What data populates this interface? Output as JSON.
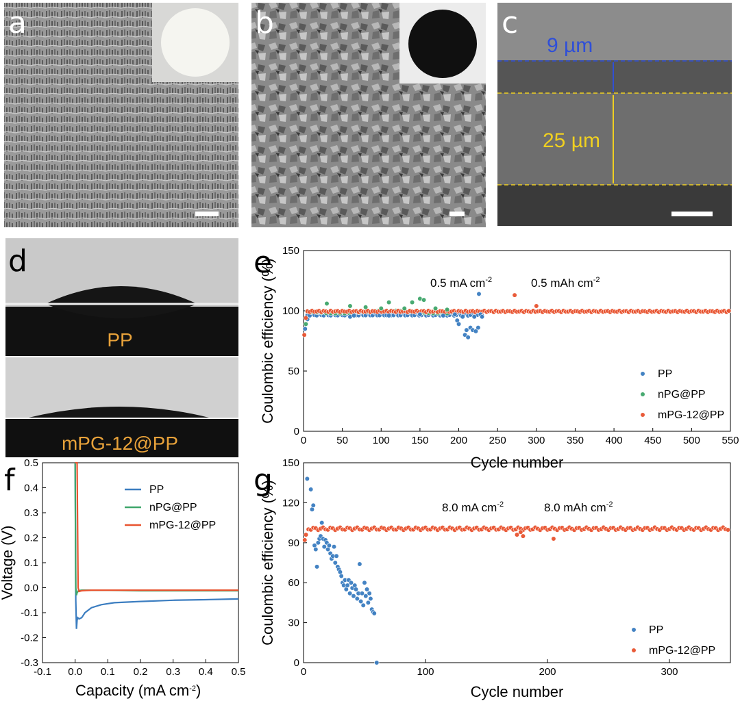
{
  "panels": {
    "a": {
      "label": "a"
    },
    "b": {
      "label": "b"
    },
    "c": {
      "label": "c",
      "top_thickness": "9 µm",
      "bottom_thickness": "25 µm"
    },
    "d": {
      "label": "d",
      "top_caption": "PP",
      "bottom_caption": "mPG-12@PP"
    }
  },
  "colors": {
    "PP": "#3b7dc0",
    "nPG@PP": "#3fa66a",
    "mPG-12@PP": "#e8532f",
    "caption": "#e8a23a",
    "scale_blue": "#2f4fd8",
    "scale_yellow": "#f0d020"
  },
  "chart_data": [
    {
      "panel": "e",
      "type": "scatter",
      "title": "",
      "xlabel": "Cycle number",
      "ylabel": "Coulombic efficiency (%)",
      "xlim": [
        0,
        550
      ],
      "ylim": [
        0,
        150
      ],
      "xticks": [
        "0",
        "50",
        "100",
        "150",
        "200",
        "250",
        "300",
        "350",
        "400",
        "450",
        "500",
        "550"
      ],
      "yticks": [
        "0",
        "50",
        "100",
        "150"
      ],
      "annotation_current": "0.5 mA cm",
      "annotation_capacity": "0.5 mAh cm",
      "annotation_sup": "-2",
      "legend_position": "right",
      "series": [
        {
          "name": "PP",
          "note": "dense band near 97-99 up to ~230 cycles",
          "points": [
            [
              2,
              85
            ],
            [
              5,
              93
            ],
            [
              60,
              95
            ],
            [
              65,
              96
            ],
            [
              110,
              96
            ],
            [
              150,
              97
            ],
            [
              180,
              96
            ],
            [
              195,
              97
            ],
            [
              198,
              92
            ],
            [
              200,
              89
            ],
            [
              205,
              95
            ],
            [
              208,
              80
            ],
            [
              210,
              84
            ],
            [
              212,
              78
            ],
            [
              215,
              86
            ],
            [
              218,
              84
            ],
            [
              220,
              95
            ],
            [
              222,
              83
            ],
            [
              225,
              86
            ],
            [
              226,
              114
            ],
            [
              228,
              97
            ],
            [
              230,
              95
            ]
          ]
        },
        {
          "name": "nPG@PP",
          "points": [
            [
              3,
              89
            ],
            [
              30,
              106
            ],
            [
              60,
              104
            ],
            [
              80,
              103
            ],
            [
              100,
              102
            ],
            [
              110,
              107
            ],
            [
              130,
              102
            ],
            [
              140,
              107
            ],
            [
              150,
              110
            ],
            [
              155,
              109
            ],
            [
              170,
              102
            ],
            [
              185,
              101
            ]
          ]
        },
        {
          "name": "mPG-12@PP",
          "note": "dense band near 99-100 over 0-550 cycles",
          "points": [
            [
              1,
              80
            ],
            [
              3,
              94
            ],
            [
              272,
              113
            ],
            [
              300,
              104
            ]
          ]
        }
      ]
    },
    {
      "panel": "f",
      "type": "line",
      "title": "",
      "xlabel": "Capacity (mA cm",
      "xlabel_sup": "-2",
      "xlabel_end": ")",
      "ylabel": "Voltage (V)",
      "xlim": [
        -0.1,
        0.5
      ],
      "ylim": [
        -0.3,
        0.5
      ],
      "xticks": [
        "-0.1",
        "0.0",
        "0.1",
        "0.2",
        "0.3",
        "0.4",
        "0.5"
      ],
      "yticks": [
        "-0.3",
        "-0.2",
        "-0.1",
        "0.0",
        "0.1",
        "0.2",
        "0.3",
        "0.4",
        "0.5"
      ],
      "legend_position": "top-right",
      "series": [
        {
          "name": "PP",
          "x": [
            0.0,
            0.002,
            0.004,
            0.006,
            0.008,
            0.012,
            0.02,
            0.03,
            0.05,
            0.08,
            0.12,
            0.2,
            0.3,
            0.4,
            0.5
          ],
          "y": [
            0.5,
            -0.05,
            -0.165,
            -0.13,
            -0.12,
            -0.125,
            -0.12,
            -0.1,
            -0.08,
            -0.068,
            -0.06,
            -0.055,
            -0.05,
            -0.048,
            -0.045
          ]
        },
        {
          "name": "nPG@PP",
          "x": [
            0.0,
            0.002,
            0.004,
            0.006,
            0.01,
            0.02,
            0.05,
            0.1,
            0.2,
            0.3,
            0.4,
            0.5
          ],
          "y": [
            0.5,
            0.0,
            -0.03,
            -0.02,
            -0.012,
            -0.01,
            -0.01,
            -0.01,
            -0.012,
            -0.012,
            -0.012,
            -0.012
          ]
        },
        {
          "name": "mPG-12@PP",
          "x": [
            0.0,
            0.006,
            0.009,
            0.012,
            0.02,
            0.05,
            0.1,
            0.2,
            0.3,
            0.4,
            0.5
          ],
          "y": [
            0.5,
            0.5,
            0.0,
            -0.015,
            -0.012,
            -0.01,
            -0.01,
            -0.01,
            -0.01,
            -0.01,
            -0.01
          ]
        }
      ]
    },
    {
      "panel": "g",
      "type": "scatter",
      "title": "",
      "xlabel": "Cycle number",
      "ylabel": "Coulombic efficiency (%)",
      "xlim": [
        0,
        350
      ],
      "ylim": [
        0,
        150
      ],
      "xticks": [
        "0",
        "100",
        "200",
        "300"
      ],
      "yticks": [
        "0",
        "30",
        "60",
        "90",
        "120",
        "150"
      ],
      "annotation_current": "8.0 mA cm",
      "annotation_capacity": "8.0 mAh cm",
      "annotation_sup": "-2",
      "legend_position": "bottom-right",
      "series": [
        {
          "name": "PP",
          "points": [
            [
              3,
              138
            ],
            [
              6,
              130
            ],
            [
              7,
              115
            ],
            [
              8,
              118
            ],
            [
              9,
              88
            ],
            [
              10,
              85
            ],
            [
              11,
              72
            ],
            [
              12,
              90
            ],
            [
              13,
              93
            ],
            [
              14,
              95
            ],
            [
              15,
              105
            ],
            [
              16,
              93
            ],
            [
              17,
              87
            ],
            [
              18,
              92
            ],
            [
              19,
              90
            ],
            [
              20,
              85
            ],
            [
              21,
              88
            ],
            [
              22,
              82
            ],
            [
              23,
              78
            ],
            [
              24,
              80
            ],
            [
              25,
              87
            ],
            [
              26,
              75
            ],
            [
              27,
              80
            ],
            [
              28,
              72
            ],
            [
              29,
              70
            ],
            [
              30,
              68
            ],
            [
              31,
              65
            ],
            [
              32,
              60
            ],
            [
              33,
              58
            ],
            [
              34,
              62
            ],
            [
              35,
              55
            ],
            [
              36,
              58
            ],
            [
              37,
              62
            ],
            [
              38,
              52
            ],
            [
              39,
              60
            ],
            [
              40,
              56
            ],
            [
              41,
              50
            ],
            [
              42,
              58
            ],
            [
              43,
              55
            ],
            [
              44,
              48
            ],
            [
              45,
              52
            ],
            [
              46,
              74
            ],
            [
              47,
              46
            ],
            [
              48,
              52
            ],
            [
              49,
              43
            ],
            [
              50,
              60
            ],
            [
              51,
              50
            ],
            [
              52,
              55
            ],
            [
              53,
              45
            ],
            [
              54,
              52
            ],
            [
              55,
              48
            ],
            [
              56,
              40
            ],
            [
              57,
              38
            ],
            [
              58,
              37
            ],
            [
              60,
              0
            ]
          ]
        },
        {
          "name": "mPG-12@PP",
          "note": "dense band near 100-102 over 0-350 cycles",
          "points": [
            [
              1,
              92
            ],
            [
              2,
              96
            ],
            [
              175,
              96
            ],
            [
              178,
              98
            ],
            [
              180,
              95
            ],
            [
              205,
              93
            ]
          ]
        }
      ]
    }
  ]
}
